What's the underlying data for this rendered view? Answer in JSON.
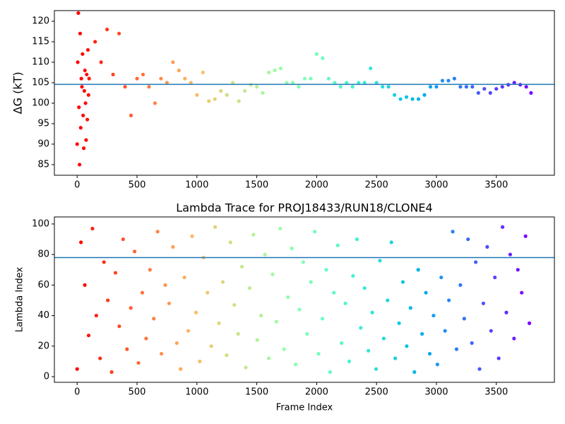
{
  "chart_data": [
    {
      "type": "scatter",
      "ylabel": "ΔG (kT)",
      "colormap": "rainbow_r",
      "hline": 104.6,
      "hline_color": "#1f77b4",
      "xlim": [
        -190,
        3985
      ],
      "ylim": [
        82.4,
        122.6
      ],
      "xticks": [
        0,
        500,
        1000,
        1500,
        2000,
        2500,
        3000,
        3500
      ],
      "yticks": [
        85,
        90,
        95,
        100,
        105,
        110,
        115,
        120
      ],
      "x": [
        0,
        5,
        10,
        15,
        20,
        25,
        30,
        35,
        40,
        45,
        50,
        55,
        60,
        65,
        70,
        75,
        80,
        85,
        90,
        95,
        100,
        150,
        200,
        250,
        300,
        350,
        400,
        450,
        500,
        550,
        600,
        650,
        700,
        750,
        800,
        850,
        900,
        950,
        1000,
        1050,
        1100,
        1150,
        1200,
        1250,
        1300,
        1350,
        1400,
        1450,
        1500,
        1550,
        1600,
        1650,
        1700,
        1750,
        1800,
        1850,
        1900,
        1950,
        2000,
        2050,
        2100,
        2150,
        2200,
        2250,
        2300,
        2350,
        2400,
        2450,
        2500,
        2550,
        2600,
        2650,
        2700,
        2750,
        2800,
        2850,
        2900,
        2950,
        3000,
        3050,
        3100,
        3150,
        3200,
        3250,
        3300,
        3350,
        3400,
        3450,
        3500,
        3550,
        3600,
        3650,
        3700,
        3750,
        3790
      ],
      "values": [
        90,
        110,
        122,
        99,
        85,
        117,
        94,
        106,
        104,
        112,
        97,
        89,
        103,
        108,
        100,
        91,
        107,
        96,
        113,
        102,
        106,
        115,
        110,
        118,
        107,
        117,
        104,
        97,
        106,
        107,
        104,
        100,
        106,
        105,
        110,
        108,
        106,
        105,
        102,
        107.5,
        100.5,
        101,
        103,
        102,
        105,
        100.5,
        103,
        104.5,
        104,
        102.5,
        107.5,
        108,
        108.5,
        105,
        105,
        104,
        106,
        106,
        112,
        111,
        106,
        105,
        104,
        105,
        104,
        105,
        105,
        108.5,
        105,
        104,
        104,
        102,
        101,
        101.5,
        101,
        101,
        102,
        104,
        104,
        105.5,
        105.5,
        106,
        104,
        104,
        104,
        102.5,
        103.5,
        102.5,
        103.5,
        104,
        104.5,
        105,
        104.5,
        104,
        102.5
      ]
    },
    {
      "type": "scatter",
      "title": "Lambda Trace for PROJ18433/RUN18/CLONE4",
      "xlabel": "Frame Index",
      "ylabel": "Lambda Index",
      "colormap": "rainbow_r",
      "hline": 78,
      "hline_color": "#1f77b4",
      "xlim": [
        -190,
        3985
      ],
      "ylim": [
        -3.7,
        104.6
      ],
      "xticks": [
        0,
        500,
        1000,
        1500,
        2000,
        2500,
        3000,
        3500
      ],
      "yticks": [
        0,
        20,
        40,
        60,
        80,
        100
      ],
      "x": [
        0,
        32,
        64,
        96,
        128,
        160,
        192,
        224,
        256,
        288,
        320,
        352,
        384,
        416,
        448,
        480,
        512,
        544,
        576,
        608,
        640,
        672,
        704,
        736,
        768,
        800,
        832,
        864,
        896,
        928,
        960,
        992,
        1024,
        1056,
        1088,
        1120,
        1152,
        1184,
        1216,
        1248,
        1280,
        1312,
        1344,
        1376,
        1408,
        1440,
        1472,
        1504,
        1536,
        1568,
        1600,
        1632,
        1664,
        1696,
        1728,
        1760,
        1792,
        1824,
        1856,
        1888,
        1920,
        1952,
        1984,
        2016,
        2048,
        2080,
        2112,
        2144,
        2176,
        2208,
        2240,
        2272,
        2304,
        2336,
        2368,
        2400,
        2432,
        2464,
        2496,
        2528,
        2560,
        2592,
        2624,
        2656,
        2688,
        2720,
        2752,
        2784,
        2816,
        2848,
        2880,
        2912,
        2944,
        2976,
        3008,
        3040,
        3072,
        3104,
        3136,
        3168,
        3200,
        3232,
        3264,
        3296,
        3328,
        3360,
        3392,
        3424,
        3456,
        3488,
        3520,
        3552,
        3584,
        3616,
        3648,
        3680,
        3712,
        3744,
        3776
      ],
      "values": [
        5,
        88,
        60,
        27,
        97,
        40,
        12,
        75,
        50,
        3,
        68,
        33,
        90,
        18,
        45,
        82,
        9,
        55,
        25,
        70,
        38,
        95,
        15,
        60,
        48,
        85,
        22,
        5,
        65,
        30,
        92,
        42,
        10,
        78,
        55,
        20,
        98,
        35,
        62,
        14,
        88,
        47,
        28,
        72,
        6,
        58,
        93,
        24,
        40,
        80,
        12,
        67,
        36,
        97,
        18,
        52,
        84,
        8,
        44,
        75,
        28,
        62,
        95,
        15,
        38,
        70,
        3,
        55,
        86,
        22,
        48,
        10,
        66,
        90,
        32,
        58,
        17,
        42,
        5,
        76,
        25,
        50,
        88,
        12,
        35,
        62,
        20,
        45,
        3,
        70,
        28,
        55,
        15,
        40,
        8,
        65,
        30,
        50,
        95,
        18,
        60,
        38,
        90,
        22,
        75,
        5,
        48,
        85,
        30,
        65,
        12,
        98,
        42,
        80,
        25,
        70,
        55,
        92,
        35
      ]
    }
  ]
}
